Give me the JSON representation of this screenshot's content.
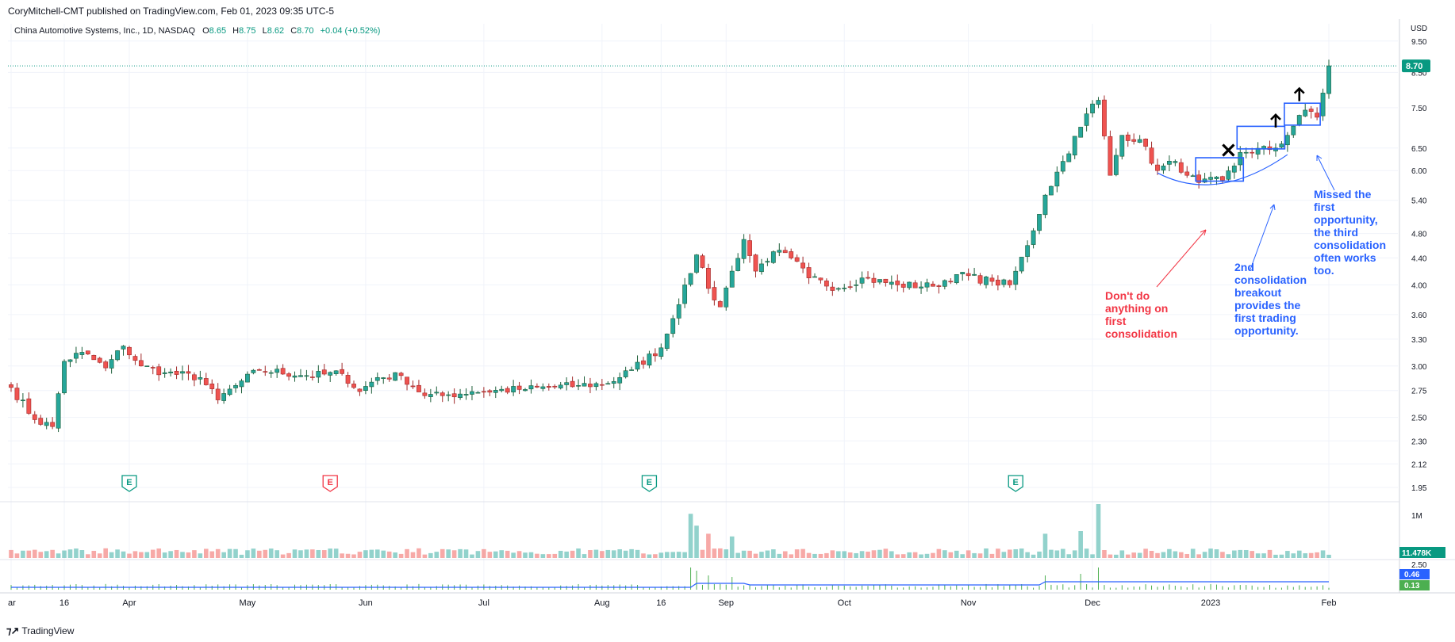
{
  "publisher": "CoryMitchell-CMT published on TradingView.com, Feb 01, 2023 09:35 UTC-5",
  "footer": {
    "brand": "TradingView",
    "logo_icon": "tradingview-logo-icon"
  },
  "chart_data": {
    "type": "candlestick",
    "symbol_line": {
      "name": "China Automotive Systems, Inc., 1D, NASDAQ",
      "open_label": "O",
      "open": "8.65",
      "high_label": "H",
      "high": "8.75",
      "low_label": "L",
      "low": "8.62",
      "close_label": "C",
      "close": "8.70",
      "change": "+0.04 (+0.52%)"
    },
    "currency": "USD",
    "y_scale": "log",
    "ylim": [
      1.88,
      10.1
    ],
    "price_ticks": [
      "9.50",
      "8.50",
      "7.50",
      "6.50",
      "6.00",
      "5.40",
      "4.80",
      "4.40",
      "4.00",
      "3.60",
      "3.30",
      "3.00",
      "2.75",
      "2.50",
      "2.30",
      "2.12",
      "1.95"
    ],
    "last_price": {
      "value": 8.7,
      "label": "8.70"
    },
    "x_ticks": [
      {
        "label": "ar",
        "i": 0
      },
      {
        "label": "16",
        "i": 9
      },
      {
        "label": "Apr",
        "i": 20
      },
      {
        "label": "May",
        "i": 40
      },
      {
        "label": "Jun",
        "i": 60
      },
      {
        "label": "Jul",
        "i": 80
      },
      {
        "label": "Aug",
        "i": 100
      },
      {
        "label": "16",
        "i": 110
      },
      {
        "label": "Sep",
        "i": 121
      },
      {
        "label": "Oct",
        "i": 141
      },
      {
        "label": "Nov",
        "i": 162
      },
      {
        "label": "Dec",
        "i": 183
      },
      {
        "label": "2023",
        "i": 203
      },
      {
        "label": "Feb",
        "i": 223
      }
    ],
    "earnings_markers": [
      {
        "i": 20,
        "label": "E",
        "color": "#089981"
      },
      {
        "i": 54,
        "label": "E",
        "color": "#f23645"
      },
      {
        "i": 108,
        "label": "E",
        "color": "#089981"
      },
      {
        "i": 170,
        "label": "E",
        "color": "#089981"
      }
    ],
    "anchors": [
      {
        "i": 0,
        "p": 2.78
      },
      {
        "i": 4,
        "p": 2.48
      },
      {
        "i": 7,
        "p": 2.42
      },
      {
        "i": 9,
        "p": 3.05
      },
      {
        "i": 12,
        "p": 3.15
      },
      {
        "i": 16,
        "p": 2.98
      },
      {
        "i": 19,
        "p": 3.22
      },
      {
        "i": 22,
        "p": 3.0
      },
      {
        "i": 26,
        "p": 2.93
      },
      {
        "i": 32,
        "p": 2.88
      },
      {
        "i": 35,
        "p": 2.66
      },
      {
        "i": 38,
        "p": 2.8
      },
      {
        "i": 42,
        "p": 2.96
      },
      {
        "i": 50,
        "p": 2.9
      },
      {
        "i": 56,
        "p": 2.92
      },
      {
        "i": 59,
        "p": 2.74
      },
      {
        "i": 62,
        "p": 2.88
      },
      {
        "i": 66,
        "p": 2.9
      },
      {
        "i": 70,
        "p": 2.7
      },
      {
        "i": 73,
        "p": 2.7
      },
      {
        "i": 78,
        "p": 2.74
      },
      {
        "i": 86,
        "p": 2.76
      },
      {
        "i": 96,
        "p": 2.8
      },
      {
        "i": 101,
        "p": 2.82
      },
      {
        "i": 105,
        "p": 2.96
      },
      {
        "i": 110,
        "p": 3.2
      },
      {
        "i": 112,
        "p": 3.55
      },
      {
        "i": 114,
        "p": 4.0
      },
      {
        "i": 116,
        "p": 4.45
      },
      {
        "i": 118,
        "p": 3.95
      },
      {
        "i": 120,
        "p": 3.7
      },
      {
        "i": 122,
        "p": 4.2
      },
      {
        "i": 124,
        "p": 4.7
      },
      {
        "i": 126,
        "p": 4.2
      },
      {
        "i": 129,
        "p": 4.5
      },
      {
        "i": 132,
        "p": 4.4
      },
      {
        "i": 135,
        "p": 4.1
      },
      {
        "i": 140,
        "p": 3.95
      },
      {
        "i": 144,
        "p": 4.1
      },
      {
        "i": 150,
        "p": 4.0
      },
      {
        "i": 156,
        "p": 3.98
      },
      {
        "i": 160,
        "p": 4.15
      },
      {
        "i": 166,
        "p": 4.05
      },
      {
        "i": 169,
        "p": 4.0
      },
      {
        "i": 172,
        "p": 4.6
      },
      {
        "i": 175,
        "p": 5.5
      },
      {
        "i": 178,
        "p": 6.2
      },
      {
        "i": 181,
        "p": 7.0
      },
      {
        "i": 183,
        "p": 7.6
      },
      {
        "i": 184,
        "p": 7.7
      },
      {
        "i": 186,
        "p": 5.9
      },
      {
        "i": 188,
        "p": 6.8
      },
      {
        "i": 191,
        "p": 6.7
      },
      {
        "i": 194,
        "p": 6.0
      },
      {
        "i": 197,
        "p": 6.2
      },
      {
        "i": 199,
        "p": 5.9
      },
      {
        "i": 201,
        "p": 5.75
      },
      {
        "i": 205,
        "p": 5.8
      },
      {
        "i": 207,
        "p": 6.1
      },
      {
        "i": 208,
        "p": 6.4
      },
      {
        "i": 214,
        "p": 6.5
      },
      {
        "i": 216,
        "p": 6.8
      },
      {
        "i": 218,
        "p": 7.3
      },
      {
        "i": 220,
        "p": 7.4
      },
      {
        "i": 221,
        "p": 7.25
      },
      {
        "i": 222,
        "p": 7.9
      },
      {
        "i": 223,
        "p": 8.7
      }
    ],
    "volume": {
      "tick_label": "1M",
      "last_label": "11.478K",
      "last_color": "#089981",
      "spikes": [
        {
          "i": 115,
          "v": 0.82
        },
        {
          "i": 116,
          "v": 0.6
        },
        {
          "i": 118,
          "v": 0.45
        },
        {
          "i": 184,
          "v": 1.0
        },
        {
          "i": 122,
          "v": 0.4
        },
        {
          "i": 175,
          "v": 0.45
        },
        {
          "i": 181,
          "v": 0.5
        }
      ]
    },
    "indicator": {
      "tick_label": "2.50",
      "value1": "0.46",
      "value1_color": "#2962ff",
      "value2": "0.13",
      "value2_color": "#4caf50"
    },
    "annotations": [
      {
        "kind": "text",
        "color": "#f23645",
        "lines": [
          "Don't do",
          "anything on",
          "first",
          "consolidation"
        ]
      },
      {
        "kind": "text",
        "color": "#2962ff",
        "lines": [
          "2nd",
          "consolidation",
          "breakout",
          "provides the",
          "first trading",
          "opportunity."
        ]
      },
      {
        "kind": "text",
        "color": "#2962ff",
        "lines": [
          "Missed the",
          "first",
          "opportunity,",
          "the third",
          "consolidation",
          "often works",
          "too."
        ]
      }
    ],
    "consolidation_boxes": [
      {
        "i0": 201,
        "i1": 208,
        "p_low": 5.78,
        "p_high": 6.28
      },
      {
        "i0": 208,
        "i1": 215,
        "p_low": 6.48,
        "p_high": 7.02
      },
      {
        "i0": 216,
        "i1": 221,
        "p_low": 7.05,
        "p_high": 7.62
      }
    ],
    "markers": [
      {
        "type": "x-mark",
        "i": 206,
        "p": 6.45
      },
      {
        "type": "up-arrow",
        "i": 214,
        "p": 7.15
      },
      {
        "type": "up-arrow",
        "i": 218,
        "p": 7.85
      }
    ]
  }
}
